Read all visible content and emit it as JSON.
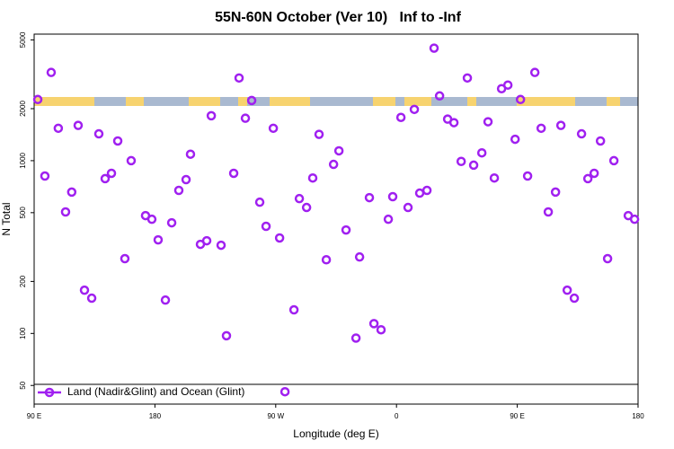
{
  "chart_data": {
    "type": "scatter",
    "title": "55N-60N October (Ver 10)   Inf to -Inf",
    "x_label": "Longitude (deg E)",
    "y_label": "N Total",
    "ylog": true,
    "legend": "lower left",
    "xlim": [
      90,
      540
    ],
    "xticks": [
      {
        "value": 90,
        "label": "90 E"
      },
      {
        "value": 180,
        "label": "180"
      },
      {
        "value": 270,
        "label": "90 W"
      },
      {
        "value": 360,
        "label": "0"
      },
      {
        "value": 450,
        "label": "90 E"
      },
      {
        "value": 540,
        "label": "180"
      }
    ],
    "ylim": [
      39,
      5400
    ],
    "yticks": [
      50,
      100,
      200,
      500,
      1000,
      2000,
      5000
    ],
    "series": [
      {
        "name": "Land (Nadir&Glint) and Ocean (Glint)",
        "color": "#a020f0",
        "x": [
          92.7,
          98,
          102.7,
          108,
          113.4,
          118,
          122.8,
          127.5,
          132.9,
          138.2,
          142.9,
          147.6,
          152.3,
          157.6,
          162.3,
          173,
          177.7,
          182.4,
          187.8,
          192.5,
          197.8,
          203.2,
          206.5,
          213.9,
          218.6,
          222,
          229.3,
          233.3,
          238.7,
          242.7,
          247.4,
          252.1,
          258.1,
          262.8,
          268.2,
          272.9,
          276.9,
          283.6,
          287.6,
          293,
          297.6,
          302.3,
          307.7,
          313.1,
          317.1,
          322.4,
          329.8,
          332.5,
          339.8,
          343.2,
          348.5,
          353.9,
          357.2,
          363.3,
          368.6,
          373.3,
          377.3,
          382.7,
          388,
          392.1,
          398.1,
          402.8,
          408.2,
          412.8,
          417.5,
          423.6,
          428.2,
          432.9,
          438.3,
          443,
          448.4,
          452.4,
          457.7,
          463.1,
          467.8,
          473.1,
          478.5,
          482.5,
          487.2,
          492.5,
          497.9,
          502.6,
          507.3,
          512,
          517.3,
          522,
          532.7,
          537.4
        ],
        "values": [
          2260,
          815,
          3240,
          1540,
          505,
          658,
          1600,
          178,
          160,
          1430,
          787,
          845,
          1300,
          271,
          1000,
          481,
          458,
          348,
          156,
          437,
          673,
          777,
          1090,
          328,
          344,
          1820,
          324,
          97,
          845,
          3010,
          1760,
          2230,
          575,
          417,
          1540,
          357,
          46,
          137,
          603,
          536,
          794,
          1420,
          267,
          952,
          1140,
          397,
          94,
          277,
          611,
          114,
          105,
          458,
          619,
          1780,
          536,
          1980,
          649,
          673,
          4480,
          2370,
          1740,
          1660,
          990,
          3010,
          942,
          1110,
          1680,
          794,
          2610,
          2740,
          1330,
          2260,
          815,
          3240,
          1540,
          505,
          658,
          1600,
          178,
          160,
          1430,
          787,
          845,
          1300,
          271,
          1000,
          481,
          458
        ]
      }
    ]
  }
}
